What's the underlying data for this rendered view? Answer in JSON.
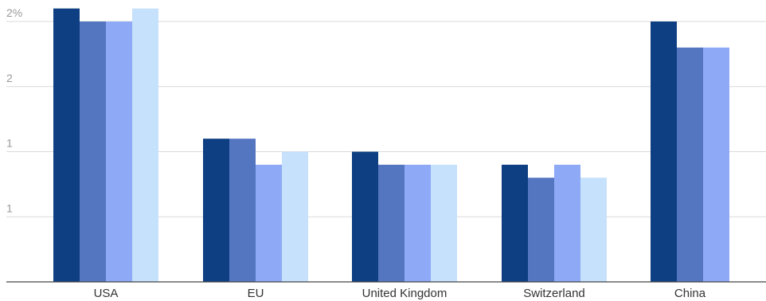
{
  "chart_data": {
    "type": "bar",
    "categories": [
      "USA",
      "EU",
      "United Kingdom",
      "Switzerland",
      "China"
    ],
    "y_tick_labels": [
      "1",
      "1",
      "2",
      "2%"
    ],
    "y_ticks_data": [
      0.5,
      1.0,
      1.5,
      2.0
    ],
    "ylim": [
      0,
      2.1
    ],
    "grid": true,
    "legend": "none",
    "series": [
      {
        "color": "#0d3f82",
        "values": [
          2.1,
          1.1,
          1.0,
          0.9,
          2.0
        ]
      },
      {
        "color": "#5475c0",
        "values": [
          2.0,
          1.1,
          0.9,
          0.8,
          1.8
        ]
      },
      {
        "color": "#8ea9f5",
        "values": [
          2.0,
          0.9,
          0.9,
          0.9,
          1.8
        ]
      },
      {
        "color": "#c6e1fb",
        "values": [
          2.1,
          1.0,
          0.9,
          0.8,
          null
        ]
      }
    ]
  }
}
